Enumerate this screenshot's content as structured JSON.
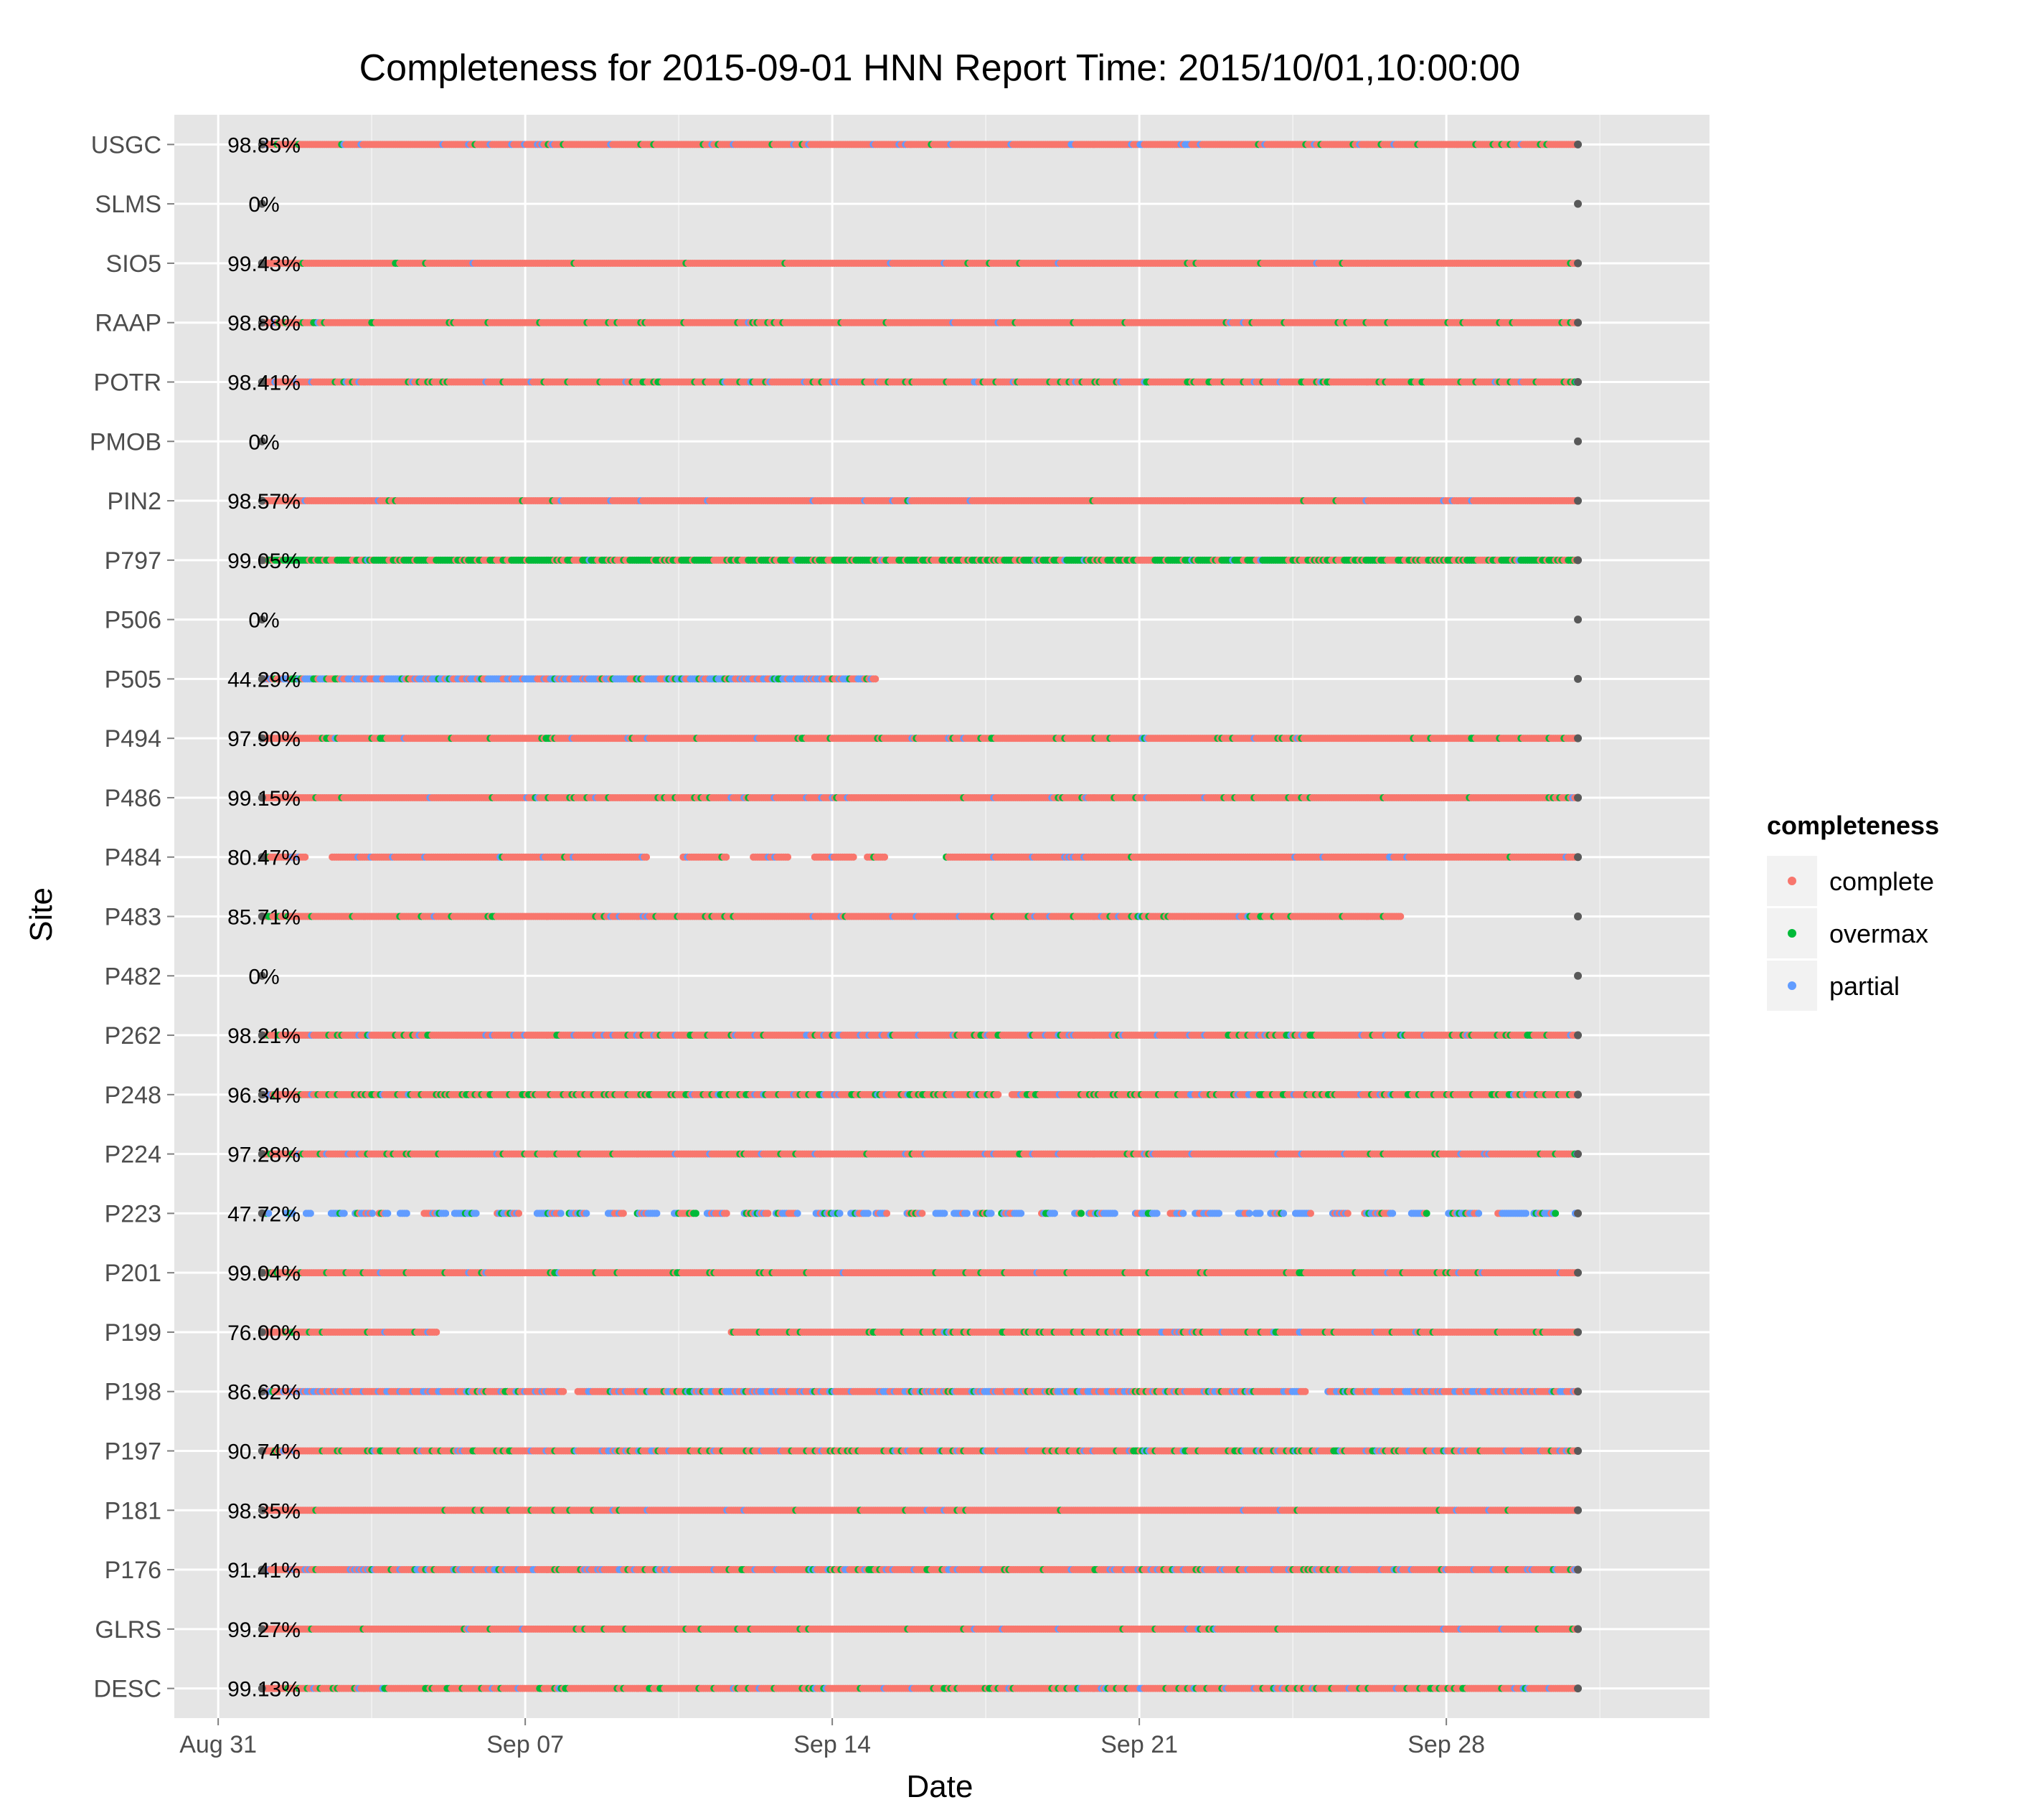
{
  "chart_data": {
    "type": "scatter",
    "title": "Completeness for  2015-09-01 HNN  Report Time:  2015/10/01,10:00:00",
    "xlabel": "Date",
    "ylabel": "Site",
    "xlim": [
      "2015-08-30",
      "2015-10-04"
    ],
    "x_ticks": [
      {
        "date": "2015-08-31",
        "label": "Aug 31"
      },
      {
        "date": "2015-09-07",
        "label": "Sep 07"
      },
      {
        "date": "2015-09-14",
        "label": "Sep 14"
      },
      {
        "date": "2015-09-21",
        "label": "Sep 21"
      },
      {
        "date": "2015-09-28",
        "label": "Sep 28"
      }
    ],
    "grid": true,
    "legend": {
      "title": "completeness",
      "position": "right",
      "entries": [
        {
          "label": "complete",
          "color": "#F8766D"
        },
        {
          "label": "overmax",
          "color": "#00BA38"
        },
        {
          "label": "partial",
          "color": "#619CFF"
        }
      ]
    },
    "colors": {
      "complete": "#F8766D",
      "overmax": "#00BA38",
      "partial": "#619CFF",
      "endpoint": "#595959",
      "panel": "#E5E5E5",
      "grid": "#FFFFFF"
    },
    "sites": [
      {
        "name": "USGC",
        "pct": "98.85%",
        "mode": "dense",
        "segments": [
          [
            "2015-09-01",
            "2015-10-01"
          ]
        ],
        "overmax": 0.05,
        "partial": 0.04
      },
      {
        "name": "SLMS",
        "pct": "0%",
        "mode": "none",
        "segments": [],
        "overmax": 0,
        "partial": 0
      },
      {
        "name": "SIO5",
        "pct": "99.43%",
        "mode": "dense",
        "segments": [
          [
            "2015-09-01",
            "2015-10-01"
          ]
        ],
        "overmax": 0.01,
        "partial": 0.01
      },
      {
        "name": "RAAP",
        "pct": "98.88%",
        "mode": "dense",
        "segments": [
          [
            "2015-09-01",
            "2015-10-01"
          ]
        ],
        "overmax": 0.05,
        "partial": 0.02
      },
      {
        "name": "POTR",
        "pct": "98.41%",
        "mode": "dense",
        "segments": [
          [
            "2015-09-01",
            "2015-10-01"
          ]
        ],
        "overmax": 0.12,
        "partial": 0.05
      },
      {
        "name": "PMOB",
        "pct": "0%",
        "mode": "none",
        "segments": [],
        "overmax": 0,
        "partial": 0
      },
      {
        "name": "PIN2",
        "pct": "98.57%",
        "mode": "dense",
        "segments": [
          [
            "2015-09-01",
            "2015-10-01"
          ]
        ],
        "overmax": 0.02,
        "partial": 0.02
      },
      {
        "name": "P797",
        "pct": "99.05%",
        "mode": "dense",
        "segments": [
          [
            "2015-09-01",
            "2015-10-01"
          ]
        ],
        "overmax": 0.65,
        "partial": 0.03
      },
      {
        "name": "P506",
        "pct": "0%",
        "mode": "none",
        "segments": [],
        "overmax": 0,
        "partial": 0
      },
      {
        "name": "P505",
        "pct": "44.29%",
        "mode": "dense",
        "segments": [
          [
            "2015-09-01",
            "2015-09-15"
          ]
        ],
        "overmax": 0.08,
        "partial": 0.6
      },
      {
        "name": "P494",
        "pct": "97.90%",
        "mode": "dense",
        "segments": [
          [
            "2015-09-01",
            "2015-10-01"
          ]
        ],
        "overmax": 0.06,
        "partial": 0.02
      },
      {
        "name": "P486",
        "pct": "99.15%",
        "mode": "dense",
        "segments": [
          [
            "2015-09-01",
            "2015-10-01"
          ]
        ],
        "overmax": 0.05,
        "partial": 0.03
      },
      {
        "name": "P484",
        "pct": "80.47%",
        "mode": "dense",
        "segments": [
          [
            "2015-09-01",
            "2015-09-02"
          ],
          [
            "2015-09-02.6",
            "2015-09-09.8"
          ],
          [
            "2015-09-10.6",
            "2015-09-11.6"
          ],
          [
            "2015-09-12.2",
            "2015-09-13"
          ],
          [
            "2015-09-13.6",
            "2015-09-14.5"
          ],
          [
            "2015-09-14.8",
            "2015-09-15.2"
          ],
          [
            "2015-09-16.6",
            "2015-10-01"
          ]
        ],
        "overmax": 0.02,
        "partial": 0.05
      },
      {
        "name": "P483",
        "pct": "85.71%",
        "mode": "dense",
        "segments": [
          [
            "2015-09-01",
            "2015-09-27"
          ]
        ],
        "overmax": 0.06,
        "partial": 0.05
      },
      {
        "name": "P482",
        "pct": "0%",
        "mode": "none",
        "segments": [],
        "overmax": 0,
        "partial": 0
      },
      {
        "name": "P262",
        "pct": "98.21%",
        "mode": "dense",
        "segments": [
          [
            "2015-09-01",
            "2015-10-01"
          ]
        ],
        "overmax": 0.12,
        "partial": 0.06
      },
      {
        "name": "P248",
        "pct": "96.34%",
        "mode": "dense",
        "segments": [
          [
            "2015-09-01",
            "2015-09-17.8"
          ],
          [
            "2015-09-18.1",
            "2015-10-01"
          ]
        ],
        "overmax": 0.18,
        "partial": 0.06
      },
      {
        "name": "P224",
        "pct": "97.28%",
        "mode": "dense",
        "segments": [
          [
            "2015-09-01",
            "2015-10-01"
          ]
        ],
        "overmax": 0.05,
        "partial": 0.04
      },
      {
        "name": "P223",
        "pct": "47.72%",
        "mode": "sparse",
        "segments": [
          [
            "2015-09-01",
            "2015-10-01"
          ]
        ],
        "overmax": 0.12,
        "partial": 0.55
      },
      {
        "name": "P201",
        "pct": "99.04%",
        "mode": "dense",
        "segments": [
          [
            "2015-09-01",
            "2015-10-01"
          ]
        ],
        "overmax": 0.08,
        "partial": 0.03
      },
      {
        "name": "P199",
        "pct": "76.00%",
        "mode": "dense",
        "segments": [
          [
            "2015-09-01",
            "2015-09-05"
          ],
          [
            "2015-09-11.7",
            "2015-10-01"
          ]
        ],
        "overmax": 0.1,
        "partial": 0.06
      },
      {
        "name": "P198",
        "pct": "86.62%",
        "mode": "dense",
        "segments": [
          [
            "2015-09-01",
            "2015-09-07.9"
          ],
          [
            "2015-09-08.2",
            "2015-09-24.8"
          ],
          [
            "2015-09-25.3",
            "2015-10-01"
          ]
        ],
        "overmax": 0.05,
        "partial": 0.3
      },
      {
        "name": "P197",
        "pct": "90.74%",
        "mode": "dense",
        "segments": [
          [
            "2015-09-01",
            "2015-10-01"
          ]
        ],
        "overmax": 0.14,
        "partial": 0.08
      },
      {
        "name": "P181",
        "pct": "98.35%",
        "mode": "dense",
        "segments": [
          [
            "2015-09-01",
            "2015-10-01"
          ]
        ],
        "overmax": 0.03,
        "partial": 0.02
      },
      {
        "name": "P176",
        "pct": "91.41%",
        "mode": "dense",
        "segments": [
          [
            "2015-09-01",
            "2015-10-01"
          ]
        ],
        "overmax": 0.08,
        "partial": 0.14
      },
      {
        "name": "GLRS",
        "pct": "99.27%",
        "mode": "dense",
        "segments": [
          [
            "2015-09-01",
            "2015-10-01"
          ]
        ],
        "overmax": 0.04,
        "partial": 0.02
      },
      {
        "name": "DESC",
        "pct": "99.13%",
        "mode": "dense",
        "segments": [
          [
            "2015-09-01",
            "2015-10-01"
          ]
        ],
        "overmax": 0.12,
        "partial": 0.05
      }
    ]
  }
}
